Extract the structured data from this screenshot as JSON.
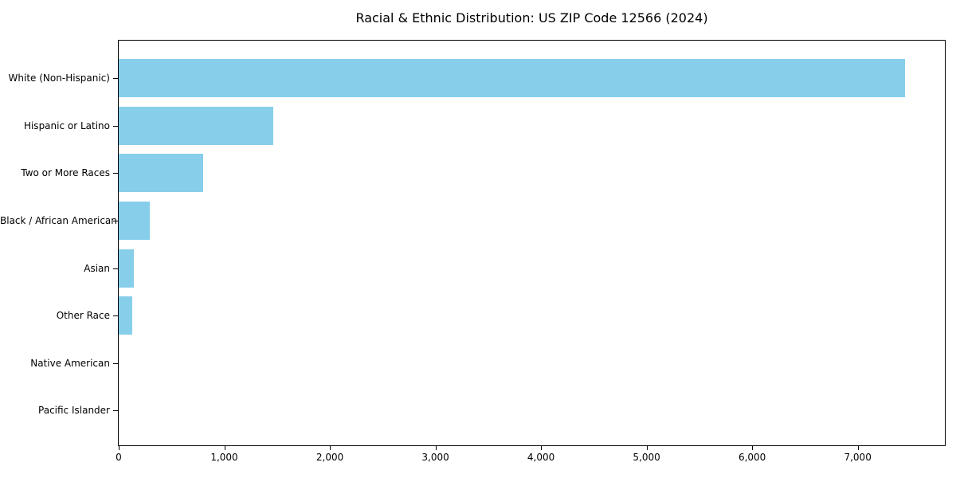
{
  "figure": {
    "title": "Racial & Ethnic Distribution: US ZIP Code 12566 (2024)"
  },
  "chart_data": {
    "type": "bar",
    "orientation": "horizontal",
    "title": "Racial & Ethnic Distribution: US ZIP Code 12566 (2024)",
    "categories": [
      "White (Non-Hispanic)",
      "Hispanic or Latino",
      "Two or More Races",
      "Black / African American",
      "Asian",
      "Other Race",
      "Native American",
      "Pacific Islander"
    ],
    "values": [
      7450,
      1465,
      800,
      295,
      140,
      125,
      0,
      0
    ],
    "xlabel": "",
    "ylabel": "",
    "xlim": [
      0,
      7825
    ],
    "x_ticks": [
      0,
      1000,
      2000,
      3000,
      4000,
      5000,
      6000,
      7000
    ],
    "x_tick_labels": [
      "0",
      "1,000",
      "2,000",
      "3,000",
      "4,000",
      "5,000",
      "6,000",
      "7,000"
    ],
    "bar_color": "#87CEEB",
    "axis_color": "#000000",
    "background_color": "#FFFFFF",
    "grid": false,
    "legend": false
  }
}
